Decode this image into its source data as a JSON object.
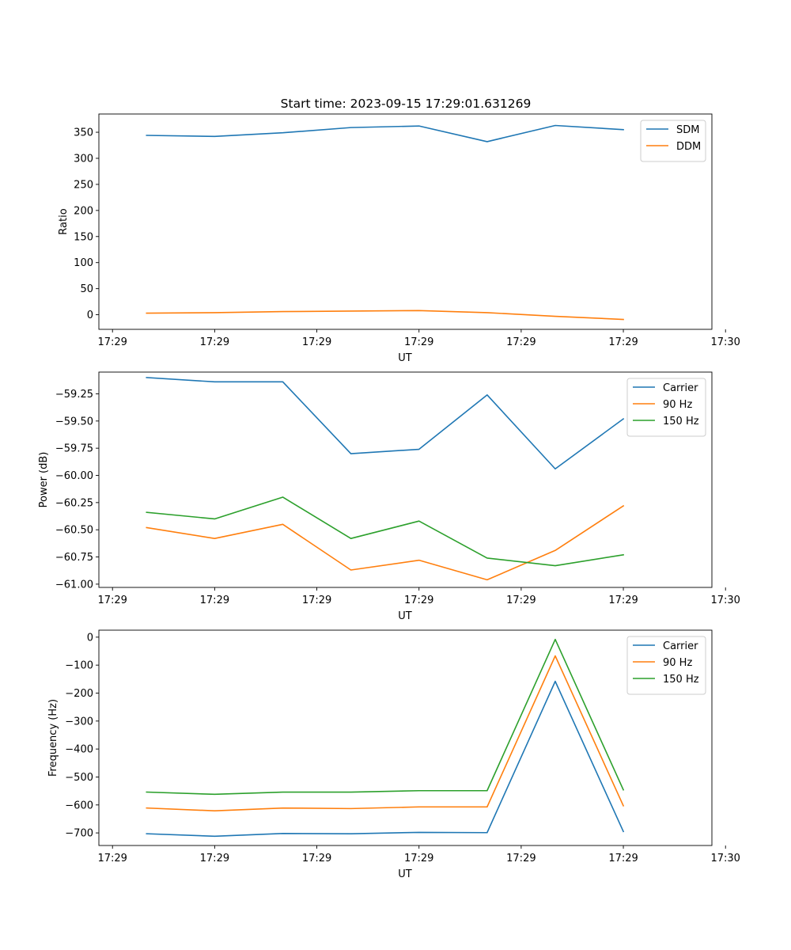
{
  "figure": {
    "title": "Start time: 2023-09-15 17:29:01.631269"
  },
  "colors": {
    "blue": "#1f77b4",
    "orange": "#ff7f0e",
    "green": "#2ca02c"
  },
  "chart_data": [
    {
      "type": "line",
      "title": "Start time: 2023-09-15 17:29:01.631269",
      "xlabel": "UT",
      "ylabel": "Ratio",
      "x": [
        1,
        2,
        3,
        4,
        5,
        6,
        7,
        8
      ],
      "xlim": [
        0.3,
        9.3
      ],
      "x_ticks": [
        0.5,
        2,
        3.5,
        5,
        6.5,
        8,
        9.5
      ],
      "x_tick_labels": [
        "17:29",
        "17:29",
        "17:29",
        "17:29",
        "17:29",
        "17:29",
        "17:30"
      ],
      "ylim": [
        -28,
        385
      ],
      "y_ticks": [
        0,
        50,
        100,
        150,
        200,
        250,
        300,
        350
      ],
      "y_tick_labels": [
        "0",
        "50",
        "100",
        "150",
        "200",
        "250",
        "300",
        "350"
      ],
      "legend_position": "top-right",
      "series": [
        {
          "name": "SDM",
          "color": "blue",
          "values": [
            344,
            342,
            349,
            359,
            362,
            332,
            363,
            355
          ]
        },
        {
          "name": "DDM",
          "color": "orange",
          "values": [
            3,
            4,
            6,
            7,
            8,
            4,
            -3,
            -9
          ]
        }
      ]
    },
    {
      "type": "line",
      "title": "",
      "xlabel": "UT",
      "ylabel": "Power (dB)",
      "x": [
        1,
        2,
        3,
        4,
        5,
        6,
        7,
        8
      ],
      "xlim": [
        0.3,
        9.3
      ],
      "x_ticks": [
        0.5,
        2,
        3.5,
        5,
        6.5,
        8,
        9.5
      ],
      "x_tick_labels": [
        "17:29",
        "17:29",
        "17:29",
        "17:29",
        "17:29",
        "17:29",
        "17:30"
      ],
      "ylim": [
        -61.03,
        -59.05
      ],
      "y_ticks": [
        -61.0,
        -60.75,
        -60.5,
        -60.25,
        -60.0,
        -59.75,
        -59.5,
        -59.25
      ],
      "y_tick_labels": [
        "−61.00",
        "−60.75",
        "−60.50",
        "−60.25",
        "−60.00",
        "−59.75",
        "−59.50",
        "−59.25"
      ],
      "legend_position": "top-right",
      "series": [
        {
          "name": "Carrier",
          "color": "blue",
          "values": [
            -59.1,
            -59.14,
            -59.14,
            -59.8,
            -59.76,
            -59.26,
            -59.94,
            -59.48
          ]
        },
        {
          "name": "90 Hz",
          "color": "orange",
          "values": [
            -60.48,
            -60.58,
            -60.45,
            -60.87,
            -60.78,
            -60.96,
            -60.69,
            -60.28
          ]
        },
        {
          "name": "150 Hz",
          "color": "green",
          "values": [
            -60.34,
            -60.4,
            -60.2,
            -60.58,
            -60.42,
            -60.76,
            -60.83,
            -60.73
          ]
        }
      ]
    },
    {
      "type": "line",
      "title": "",
      "xlabel": "UT",
      "ylabel": "Frequency (Hz)",
      "x": [
        1,
        2,
        3,
        4,
        5,
        6,
        7,
        8
      ],
      "xlim": [
        0.3,
        9.3
      ],
      "x_ticks": [
        0.5,
        2,
        3.5,
        5,
        6.5,
        8,
        9.5
      ],
      "x_tick_labels": [
        "17:29",
        "17:29",
        "17:29",
        "17:29",
        "17:29",
        "17:29",
        "17:30"
      ],
      "ylim": [
        -745,
        25
      ],
      "y_ticks": [
        -700,
        -600,
        -500,
        -400,
        -300,
        -200,
        -100,
        0
      ],
      "y_tick_labels": [
        "−700",
        "−600",
        "−500",
        "−400",
        "−300",
        "−200",
        "−100",
        "0"
      ],
      "legend_position": "top-right",
      "series": [
        {
          "name": "Carrier",
          "color": "blue",
          "values": [
            -703,
            -712,
            -702,
            -703,
            -698,
            -699,
            -158,
            -695
          ]
        },
        {
          "name": "90 Hz",
          "color": "orange",
          "values": [
            -611,
            -621,
            -611,
            -613,
            -607,
            -607,
            -67,
            -603
          ]
        },
        {
          "name": "150 Hz",
          "color": "green",
          "values": [
            -554,
            -562,
            -554,
            -554,
            -549,
            -549,
            -8,
            -546
          ]
        }
      ]
    }
  ]
}
